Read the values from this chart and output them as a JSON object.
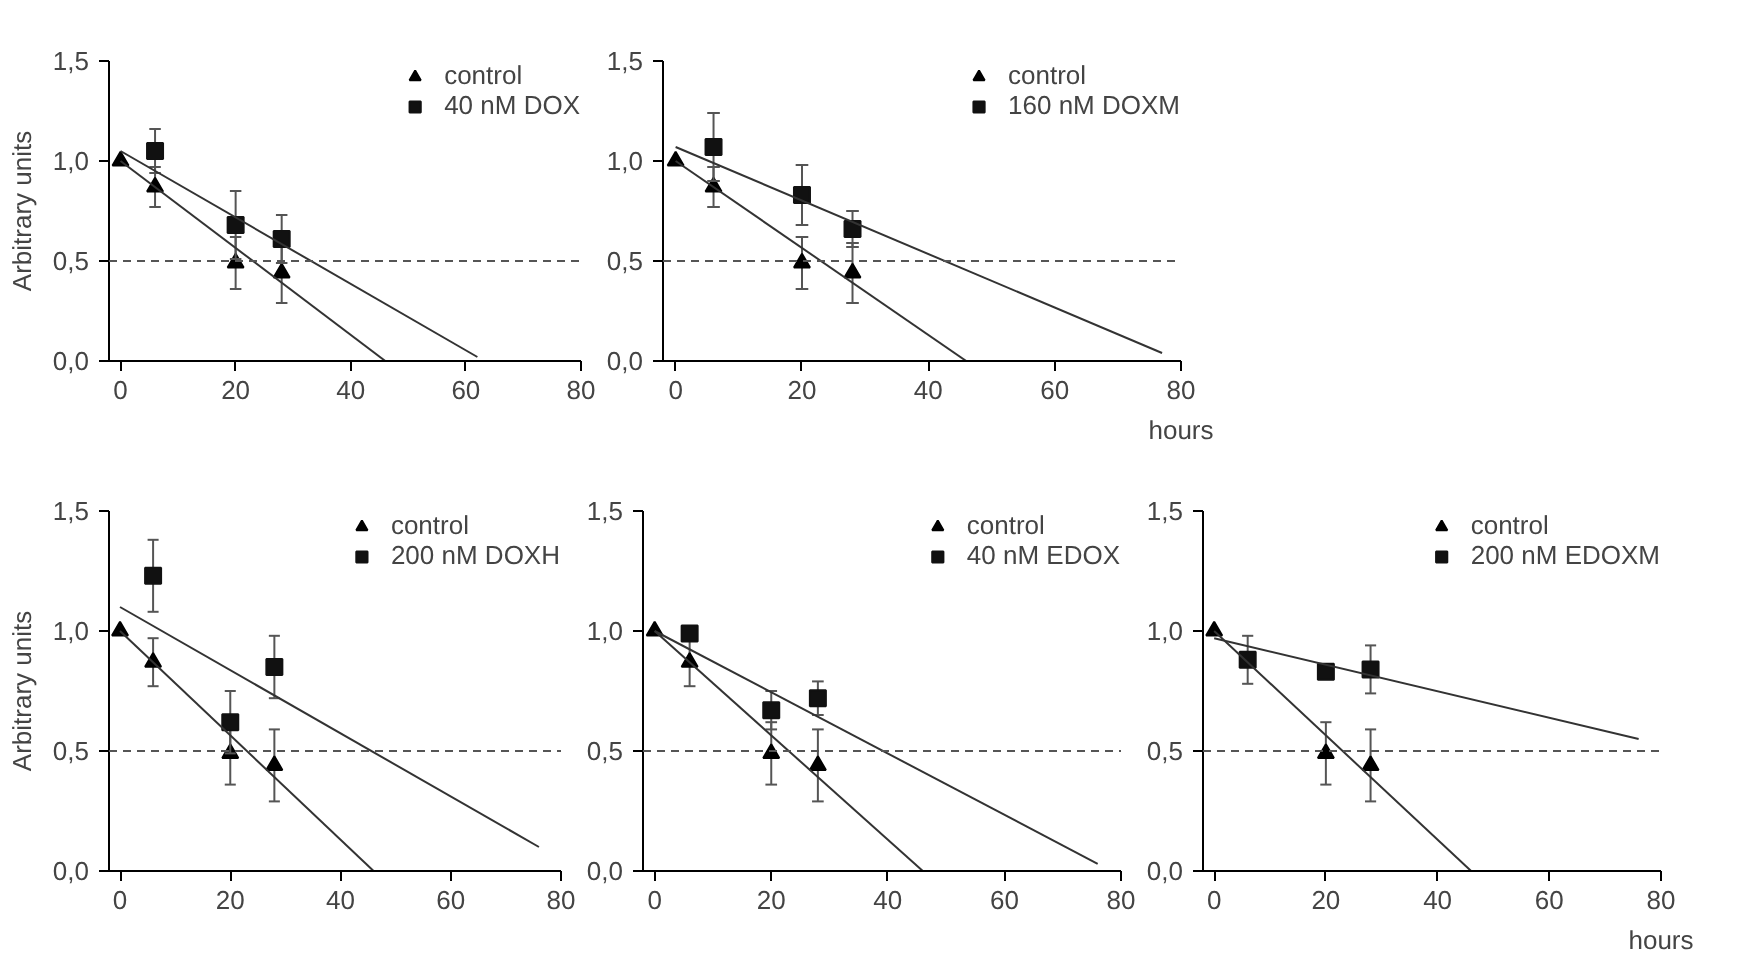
{
  "chart_data": [
    {
      "type": "scatter",
      "ylabel": "Arbitrary units",
      "xlim": [
        -2,
        80
      ],
      "ylim": [
        0,
        1.5
      ],
      "xticks": [
        0,
        20,
        40,
        60,
        80
      ],
      "yticks": [
        {
          "value": 0,
          "label": "0,0"
        },
        {
          "value": 0.5,
          "label": "0,5"
        },
        {
          "value": 1.0,
          "label": "1,0"
        },
        {
          "value": 1.5,
          "label": "1,5"
        }
      ],
      "grid": false,
      "legend": "top right",
      "ref_lines": [
        {
          "axis": "y",
          "value": 0.5,
          "label": null,
          "line_style": "dashed",
          "color": "#555555"
        }
      ],
      "series": [
        {
          "name": "control",
          "marker": "triangle",
          "color": "#000000",
          "x": [
            0,
            6,
            20,
            28
          ],
          "values": [
            1.0,
            0.87,
            0.49,
            0.44
          ],
          "errors": [
            null,
            0.1,
            0.13,
            0.15
          ]
        },
        {
          "name": "40 nM DOX",
          "marker": "square",
          "color": "#111111",
          "x": [
            6,
            20,
            28
          ],
          "values": [
            1.05,
            0.68,
            0.61
          ],
          "errors": [
            0.11,
            0.17,
            0.12
          ]
        },
        {
          "type": "line",
          "color": "#333333",
          "x": [
            0,
            46
          ],
          "values": [
            1.0,
            0.0
          ]
        },
        {
          "type": "line",
          "color": "#333333",
          "x": [
            0,
            62
          ],
          "values": [
            1.05,
            0.02
          ]
        }
      ]
    },
    {
      "type": "scatter",
      "xlabel": "hours",
      "xlim": [
        -2,
        80
      ],
      "ylim": [
        0,
        1.5
      ],
      "xticks": [
        0,
        20,
        40,
        60,
        80
      ],
      "yticks": [
        {
          "value": 0,
          "label": "0,0"
        },
        {
          "value": 0.5,
          "label": "0,5"
        },
        {
          "value": 1.0,
          "label": "1,0"
        },
        {
          "value": 1.5,
          "label": "1,5"
        }
      ],
      "grid": false,
      "legend": "top right",
      "ref_lines": [
        {
          "axis": "y",
          "value": 0.5,
          "label": null,
          "line_style": "dashed",
          "color": "#555555"
        }
      ],
      "series": [
        {
          "name": "control",
          "marker": "triangle",
          "color": "#000000",
          "x": [
            0,
            6,
            20,
            28
          ],
          "values": [
            1.0,
            0.87,
            0.49,
            0.44
          ],
          "errors": [
            null,
            0.1,
            0.13,
            0.15
          ]
        },
        {
          "name": "160 nM DOXM",
          "marker": "square",
          "color": "#111111",
          "x": [
            6,
            20,
            28
          ],
          "values": [
            1.07,
            0.83,
            0.66
          ],
          "errors": [
            0.17,
            0.15,
            0.09
          ]
        },
        {
          "type": "line",
          "color": "#333333",
          "x": [
            0,
            46
          ],
          "values": [
            1.0,
            0.0
          ]
        },
        {
          "type": "line",
          "color": "#333333",
          "x": [
            0,
            77
          ],
          "values": [
            1.07,
            0.04
          ]
        }
      ]
    },
    {
      "type": "scatter",
      "ylabel": "Arbitrary units",
      "xlim": [
        -2,
        80
      ],
      "ylim": [
        0,
        1.5
      ],
      "xticks": [
        0,
        20,
        40,
        60,
        80
      ],
      "yticks": [
        {
          "value": 0,
          "label": "0,0"
        },
        {
          "value": 0.5,
          "label": "0,5"
        },
        {
          "value": 1.0,
          "label": "1,0"
        },
        {
          "value": 1.5,
          "label": "1,5"
        }
      ],
      "grid": false,
      "legend": "top right",
      "ref_lines": [
        {
          "axis": "y",
          "value": 0.5,
          "label": null,
          "line_style": "dashed",
          "color": "#555555"
        }
      ],
      "series": [
        {
          "name": "control",
          "marker": "triangle",
          "color": "#000000",
          "x": [
            0,
            6,
            20,
            28
          ],
          "values": [
            1.0,
            0.87,
            0.49,
            0.44
          ],
          "errors": [
            null,
            0.1,
            0.13,
            0.15
          ]
        },
        {
          "name": "200 nM DOXH",
          "marker": "square",
          "color": "#111111",
          "x": [
            6,
            20,
            28
          ],
          "values": [
            1.23,
            0.62,
            0.85
          ],
          "errors": [
            0.15,
            0.13,
            0.13
          ]
        },
        {
          "type": "line",
          "color": "#333333",
          "x": [
            0,
            46
          ],
          "values": [
            1.0,
            0.0
          ]
        },
        {
          "type": "line",
          "color": "#333333",
          "x": [
            0,
            76
          ],
          "values": [
            1.1,
            0.1
          ]
        }
      ]
    },
    {
      "type": "scatter",
      "xlim": [
        -2,
        80
      ],
      "ylim": [
        0,
        1.5
      ],
      "xticks": [
        0,
        20,
        40,
        60,
        80
      ],
      "yticks": [
        {
          "value": 0,
          "label": "0,0"
        },
        {
          "value": 0.5,
          "label": "0,5"
        },
        {
          "value": 1.0,
          "label": "1,0"
        },
        {
          "value": 1.5,
          "label": "1,5"
        }
      ],
      "grid": false,
      "legend": "top right",
      "ref_lines": [
        {
          "axis": "y",
          "value": 0.5,
          "label": null,
          "line_style": "dashed",
          "color": "#555555"
        }
      ],
      "series": [
        {
          "name": "control",
          "marker": "triangle",
          "color": "#000000",
          "x": [
            0,
            6,
            20,
            28
          ],
          "values": [
            1.0,
            0.87,
            0.49,
            0.44
          ],
          "errors": [
            null,
            0.1,
            0.13,
            0.15
          ]
        },
        {
          "name": "40 nM EDOX",
          "marker": "square",
          "color": "#111111",
          "x": [
            6,
            20,
            28
          ],
          "values": [
            0.99,
            0.67,
            0.72
          ],
          "errors": [
            null,
            0.08,
            0.07
          ]
        },
        {
          "type": "line",
          "color": "#333333",
          "x": [
            0,
            46
          ],
          "values": [
            1.0,
            0.0
          ]
        },
        {
          "type": "line",
          "color": "#333333",
          "x": [
            0,
            76
          ],
          "values": [
            1.0,
            0.03
          ]
        }
      ]
    },
    {
      "type": "scatter",
      "xlabel": "hours",
      "xlim": [
        -2,
        80
      ],
      "ylim": [
        0,
        1.5
      ],
      "xticks": [
        0,
        20,
        40,
        60,
        80
      ],
      "yticks": [
        {
          "value": 0,
          "label": "0,0"
        },
        {
          "value": 0.5,
          "label": "0,5"
        },
        {
          "value": 1.0,
          "label": "1,0"
        },
        {
          "value": 1.5,
          "label": "1,5"
        }
      ],
      "grid": false,
      "legend": "top right",
      "ref_lines": [
        {
          "axis": "y",
          "value": 0.5,
          "label": null,
          "line_style": "dashed",
          "color": "#555555"
        }
      ],
      "series": [
        {
          "name": "control",
          "marker": "triangle",
          "color": "#000000",
          "x": [
            0,
            20,
            28
          ],
          "values": [
            1.0,
            0.49,
            0.44
          ],
          "errors": [
            null,
            0.13,
            0.15
          ]
        },
        {
          "name": "200 nM EDOXM",
          "marker": "square",
          "color": "#111111",
          "x": [
            6,
            20,
            28
          ],
          "values": [
            0.88,
            0.83,
            0.84
          ],
          "errors": [
            0.1,
            null,
            0.1
          ]
        },
        {
          "type": "line",
          "color": "#333333",
          "x": [
            0,
            46
          ],
          "values": [
            1.0,
            0.0
          ]
        },
        {
          "type": "line",
          "color": "#333333",
          "x": [
            0,
            76
          ],
          "values": [
            0.97,
            0.55
          ]
        }
      ]
    }
  ]
}
